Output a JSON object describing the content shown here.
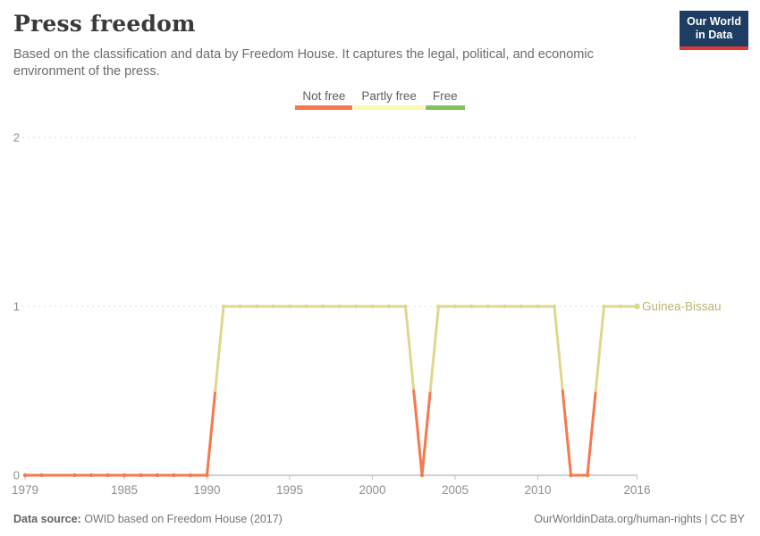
{
  "header": {
    "title": "Press freedom",
    "subtitle_line1": "Based on the classification and data by Freedom House. It captures the legal, political, and economic",
    "subtitle_line2": "environment of the press.",
    "logo_line1": "Our World",
    "logo_line2": "in Data",
    "logo_bg": "#1D3D63",
    "logo_accent": "#E0392F"
  },
  "legend": {
    "items": [
      {
        "label": "Not free",
        "color": "#F6784C"
      },
      {
        "label": "Partly free",
        "color": "#FBF8B2"
      },
      {
        "label": "Free",
        "color": "#7FC35C"
      }
    ]
  },
  "chart_data": {
    "type": "line",
    "title": "Press freedom",
    "entity": "Guinea-Bissau",
    "value_categories": {
      "0": "Not free",
      "1": "Partly free",
      "2": "Free"
    },
    "series": [
      {
        "name": "Guinea-Bissau",
        "points": [
          [
            1979,
            0
          ],
          [
            1980,
            0
          ],
          [
            1982,
            0
          ],
          [
            1983,
            0
          ],
          [
            1984,
            0
          ],
          [
            1985,
            0
          ],
          [
            1986,
            0
          ],
          [
            1987,
            0
          ],
          [
            1988,
            0
          ],
          [
            1989,
            0
          ],
          [
            1990,
            0
          ],
          [
            1991,
            1
          ],
          [
            1992,
            1
          ],
          [
            1993,
            1
          ],
          [
            1994,
            1
          ],
          [
            1995,
            1
          ],
          [
            1996,
            1
          ],
          [
            1997,
            1
          ],
          [
            1998,
            1
          ],
          [
            1999,
            1
          ],
          [
            2000,
            1
          ],
          [
            2001,
            1
          ],
          [
            2002,
            1
          ],
          [
            2003,
            0
          ],
          [
            2004,
            1
          ],
          [
            2005,
            1
          ],
          [
            2006,
            1
          ],
          [
            2007,
            1
          ],
          [
            2008,
            1
          ],
          [
            2009,
            1
          ],
          [
            2010,
            1
          ],
          [
            2011,
            1
          ],
          [
            2012,
            0
          ],
          [
            2013,
            0
          ],
          [
            2014,
            1
          ],
          [
            2015,
            1
          ],
          [
            2016,
            1
          ]
        ]
      }
    ],
    "xlim": [
      1979,
      2016
    ],
    "ylim": [
      0,
      2
    ],
    "xticks": [
      1979,
      1985,
      1990,
      1995,
      2000,
      2005,
      2010,
      2016
    ],
    "yticks": [
      0,
      1,
      2
    ],
    "grid": "horizontal-dashed",
    "line_colors": {
      "0": "#F6784C",
      "1": "#DCD88D"
    },
    "entity_label_color": "#BBB672",
    "axis_color": "#a3a3a3",
    "grid_color": "#dcdcdc",
    "tick_label_color": "#8f8f8f"
  },
  "footer": {
    "source_label": "Data source:",
    "source_value": "OWID based on Freedom House (2017)",
    "credit": "OurWorldinData.org/human-rights | CC BY"
  }
}
